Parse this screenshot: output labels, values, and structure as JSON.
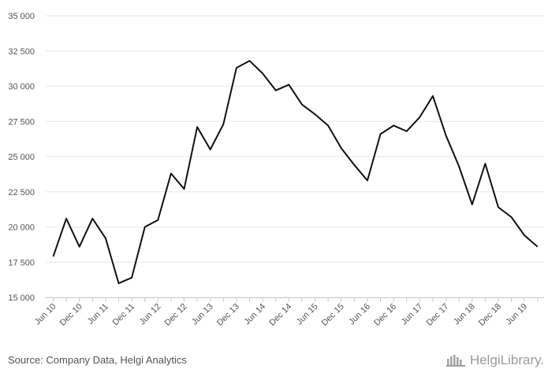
{
  "chart_data": {
    "type": "line",
    "title": "",
    "xlabel": "",
    "ylabel": "",
    "ylim": [
      15000,
      35000
    ],
    "yticks": [
      15000,
      17500,
      20000,
      22500,
      25000,
      27500,
      30000,
      32500,
      35000
    ],
    "ytick_labels": [
      "15 000",
      "17 500",
      "20 000",
      "22 500",
      "25 000",
      "27 500",
      "30 000",
      "32 500",
      "35 000"
    ],
    "grid": true,
    "legend": "none",
    "line_color": "#111111",
    "grid_color": "#e6e6e6",
    "x_tick_labels": [
      "Jun 10",
      "Dec 10",
      "Jun 11",
      "Dec 11",
      "Jun 12",
      "Dec 12",
      "Jun 13",
      "Dec 13",
      "Jun 14",
      "Dec 14",
      "Jun 15",
      "Dec 15",
      "Jun 16",
      "Dec 16",
      "Jun 17",
      "Dec 17",
      "Jun 18",
      "Dec 18",
      "Jun 19"
    ],
    "x_tick_indices": [
      0,
      2,
      4,
      6,
      8,
      10,
      12,
      14,
      16,
      18,
      20,
      22,
      24,
      26,
      28,
      30,
      32,
      34,
      36
    ],
    "series": [
      {
        "values": [
          17900,
          20600,
          18600,
          20600,
          19200,
          16000,
          16400,
          20000,
          20500,
          23800,
          22700,
          27100,
          25500,
          27300,
          31300,
          31800,
          30900,
          29700,
          30100,
          28700,
          28000,
          27200,
          25600,
          24400,
          23300,
          26600,
          27200,
          26800,
          27800,
          29300,
          26500,
          24300,
          21600,
          24500,
          21400,
          20700,
          19400,
          18600
        ]
      }
    ]
  },
  "footer": {
    "source": "Source: Company Data, Helgi Analytics",
    "logo_text": "HelgiLibrary."
  }
}
